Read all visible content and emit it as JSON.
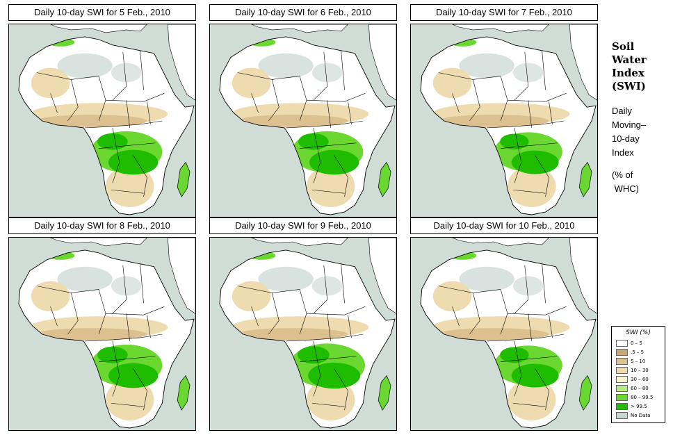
{
  "panels": [
    {
      "title": "Daily 10-day SWI for  5 Feb., 2010",
      "wet_scale": 1.0
    },
    {
      "title": "Daily 10-day SWI for  6 Feb., 2010",
      "wet_scale": 1.0
    },
    {
      "title": "Daily 10-day SWI for  7 Feb., 2010",
      "wet_scale": 0.95
    },
    {
      "title": "Daily 10-day SWI for  8 Feb., 2010",
      "wet_scale": 1.0
    },
    {
      "title": "Daily 10-day SWI for  9 Feb., 2010",
      "wet_scale": 1.05
    },
    {
      "title": "Daily 10-day SWI for  10 Feb., 2010",
      "wet_scale": 0.95
    }
  ],
  "side": {
    "title_lines": [
      "Soil",
      "Water",
      "Index",
      "(SWI)"
    ],
    "desc_lines": [
      "Daily",
      "Moving–",
      "10-day",
      "Index"
    ],
    "unit_lines": [
      "(% of",
      " WHC)"
    ]
  },
  "legend": {
    "title": "SWI (%)",
    "items": [
      {
        "label": "0 – 5",
        "color": "#ffffff"
      },
      {
        "label": ".5 – 5",
        "color": "#c8a878"
      },
      {
        "label": "5 – 10",
        "color": "#dcc090"
      },
      {
        "label": "10 – 30",
        "color": "#eedcb0"
      },
      {
        "label": "30 – 60",
        "color": "#f7f3d0"
      },
      {
        "label": "60 – 80",
        "color": "#b8ec88"
      },
      {
        "label": "80 – 99.5",
        "color": "#6ad830"
      },
      {
        "label": "> 99.5",
        "color": "#1fbd00"
      },
      {
        "label": "No Data",
        "color": "#c8d6d0"
      }
    ]
  },
  "colors": {
    "ocean": "#cfddd6",
    "land": "#ffffff",
    "dry": "#dcc090",
    "dry_light": "#eedcb0",
    "wet": "#6ad830",
    "wet_dark": "#1fbd00",
    "nodata": "#c8d6d0",
    "border": "#000000"
  }
}
